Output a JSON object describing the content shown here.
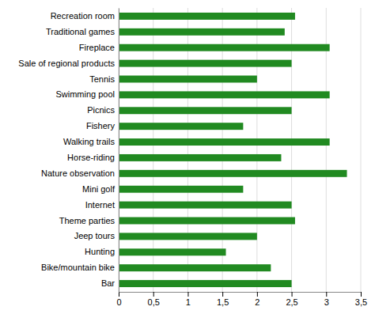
{
  "chart_data": {
    "type": "bar",
    "orientation": "horizontal",
    "categories": [
      "Bar",
      "Bike/mountain bike",
      "Hunting",
      "Jeep tours",
      "Theme parties",
      "Internet",
      "Mini golf",
      "Nature observation",
      "Horse-riding",
      "Walking trails",
      "Fishery",
      "Picnics",
      "Swimming pool",
      "Tennis",
      "Sale of regional products",
      "Fireplace",
      "Traditional games",
      "Recreation room"
    ],
    "values": [
      2.5,
      2.2,
      1.55,
      2.0,
      2.55,
      2.5,
      1.8,
      3.3,
      2.35,
      3.05,
      1.8,
      2.5,
      3.05,
      2.0,
      2.5,
      3.05,
      2.4,
      2.55
    ],
    "color": "#218a21",
    "xlim": [
      0,
      3.5
    ],
    "xticks": [
      0,
      {
        "value": 0.5,
        "label": "0,5"
      },
      1,
      {
        "value": 1.5,
        "label": "1,5"
      },
      2,
      {
        "value": 2.5,
        "label": "2,5"
      },
      3,
      {
        "value": 3.5,
        "label": "3,5"
      }
    ],
    "grid": true
  }
}
